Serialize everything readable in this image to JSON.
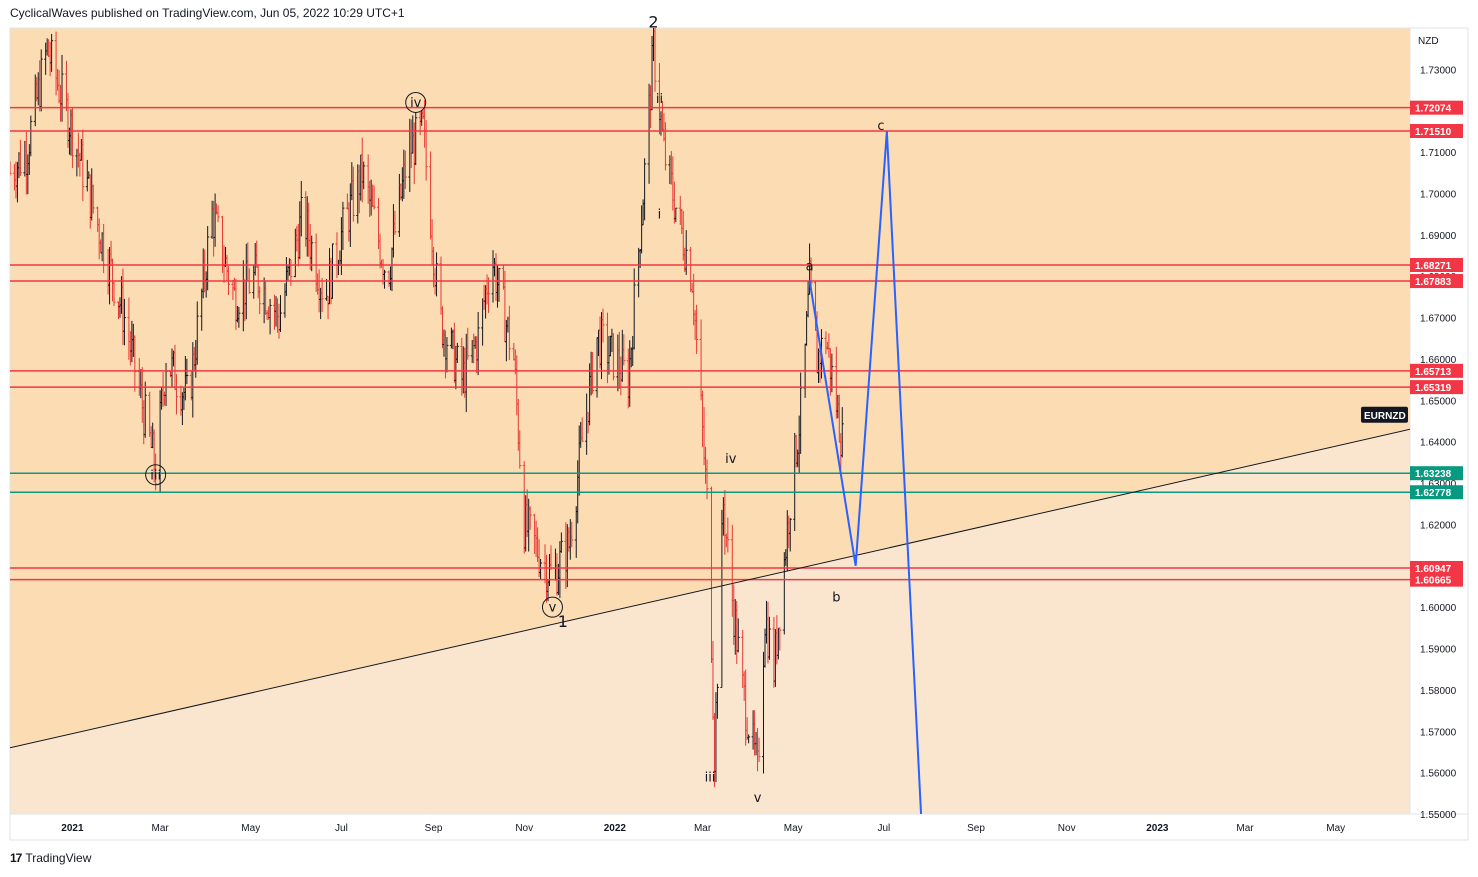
{
  "header": {
    "text": "CyclicalWaves published on TradingView.com, Jun 05, 2022 10:29 UTC+1"
  },
  "footer": {
    "brand": "TradingView",
    "logo": "17"
  },
  "colors": {
    "bg_upper": "#fbdcb3",
    "bg_lower": "#fae6cf",
    "red": "#f23645",
    "green": "#089981",
    "blue": "#2962ff",
    "candle": "#131722",
    "candle_red": "#e53935"
  },
  "chart_data": {
    "type": "candlestick",
    "symbol": "EURNZD",
    "currency": "NZD",
    "ylim": [
      1.55,
      1.74
    ],
    "y_ticks": [
      "1.73000",
      "1.72000",
      "1.71000",
      "1.70000",
      "1.69000",
      "1.68000",
      "1.67000",
      "1.66000",
      "1.65000",
      "1.64000",
      "1.63000",
      "1.62000",
      "1.61000",
      "1.60000",
      "1.59000",
      "1.58000",
      "1.57000",
      "1.56000",
      "1.55000"
    ],
    "x_labels": [
      "2021",
      "Mar",
      "May",
      "Jul",
      "Sep",
      "Nov",
      "2022",
      "Mar",
      "May",
      "Jul",
      "Sep",
      "Nov",
      "2023",
      "Mar",
      "May"
    ],
    "price_path": [
      [
        "2020-11-20",
        1.705
      ],
      [
        "2020-12-01",
        1.71
      ],
      [
        "2020-12-15",
        1.735
      ],
      [
        "2021-01-01",
        1.715
      ],
      [
        "2021-01-20",
        1.69
      ],
      [
        "2021-02-05",
        1.67
      ],
      [
        "2021-02-26",
        1.633
      ],
      [
        "2021-03-05",
        1.66
      ],
      [
        "2021-03-20",
        1.65
      ],
      [
        "2021-04-05",
        1.695
      ],
      [
        "2021-04-20",
        1.675
      ],
      [
        "2021-05-05",
        1.68
      ],
      [
        "2021-05-20",
        1.67
      ],
      [
        "2021-06-05",
        1.695
      ],
      [
        "2021-06-20",
        1.675
      ],
      [
        "2021-07-01",
        1.69
      ],
      [
        "2021-07-15",
        1.705
      ],
      [
        "2021-08-01",
        1.68
      ],
      [
        "2021-08-15",
        1.71
      ],
      [
        "2021-08-25",
        1.715
      ],
      [
        "2021-09-05",
        1.67
      ],
      [
        "2021-09-20",
        1.655
      ],
      [
        "2021-10-01",
        1.665
      ],
      [
        "2021-10-10",
        1.685
      ],
      [
        "2021-10-25",
        1.66
      ],
      [
        "2021-11-01",
        1.62
      ],
      [
        "2021-11-20",
        1.607
      ],
      [
        "2021-12-01",
        1.615
      ],
      [
        "2021-12-10",
        1.64
      ],
      [
        "2021-12-20",
        1.665
      ],
      [
        "2022-01-01",
        1.66
      ],
      [
        "2022-01-10",
        1.655
      ],
      [
        "2022-01-20",
        1.7
      ],
      [
        "2022-01-27",
        1.735
      ],
      [
        "2022-02-03",
        1.71
      ],
      [
        "2022-02-12",
        1.695
      ],
      [
        "2022-02-22",
        1.68
      ],
      [
        "2022-03-05",
        1.62
      ],
      [
        "2022-03-09",
        1.565
      ],
      [
        "2022-03-15",
        1.625
      ],
      [
        "2022-03-20",
        1.605
      ],
      [
        "2022-03-28",
        1.58
      ],
      [
        "2022-04-07",
        1.56
      ],
      [
        "2022-04-12",
        1.598
      ],
      [
        "2022-04-18",
        1.585
      ],
      [
        "2022-04-30",
        1.63
      ],
      [
        "2022-05-07",
        1.65
      ],
      [
        "2022-05-12",
        1.678
      ],
      [
        "2022-05-17",
        1.66
      ],
      [
        "2022-05-23",
        1.665
      ],
      [
        "2022-06-03",
        1.64
      ]
    ],
    "series": [
      {
        "name": "EURNZD",
        "type": "candles"
      }
    ],
    "horizontal_lines": [
      {
        "value": 1.72074,
        "label": "1.72074",
        "color": "red"
      },
      {
        "value": 1.7151,
        "label": "1.71510",
        "color": "red"
      },
      {
        "value": 1.68271,
        "label": "1.68271",
        "color": "red"
      },
      {
        "value": 1.67883,
        "label": "1.67883",
        "color": "red"
      },
      {
        "value": 1.65713,
        "label": "1.65713",
        "color": "red"
      },
      {
        "value": 1.65319,
        "label": "1.65319",
        "color": "red"
      },
      {
        "value": 1.63238,
        "label": "1.63238",
        "color": "green"
      },
      {
        "value": 1.62778,
        "label": "1.62778",
        "color": "green"
      },
      {
        "value": 1.60947,
        "label": "1.60947",
        "color": "red"
      },
      {
        "value": 1.60665,
        "label": "1.60665",
        "color": "red"
      }
    ],
    "trendline": {
      "from": [
        "2020-11-20",
        1.566
      ],
      "to": [
        "2023-06-20",
        1.643
      ]
    },
    "projection": [
      [
        "2022-05-12",
        1.679
      ],
      [
        "2022-06-12",
        1.61
      ],
      [
        "2022-07-03",
        1.715
      ],
      [
        "2022-07-26",
        1.55
      ]
    ],
    "wave_labels": [
      {
        "text": "2",
        "date": "2022-01-27",
        "value": 1.7415,
        "size": "large"
      },
      {
        "text": "1",
        "date": "2021-11-27",
        "value": 1.5965,
        "size": "large"
      },
      {
        "text": "iv",
        "date": "2021-08-20",
        "value": 1.722,
        "circled": true
      },
      {
        "text": "iii",
        "date": "2021-02-26",
        "value": 1.632,
        "circled": true
      },
      {
        "text": "v",
        "date": "2021-11-20",
        "value": 1.6,
        "circled": true
      },
      {
        "text": "ii",
        "date": "2022-01-31",
        "value": 1.723
      },
      {
        "text": "i",
        "date": "2022-01-31",
        "value": 1.695
      },
      {
        "text": "iv",
        "date": "2022-03-20",
        "value": 1.636
      },
      {
        "text": "iii",
        "date": "2022-03-06",
        "value": 1.559
      },
      {
        "text": "v",
        "date": "2022-04-07",
        "value": 1.554
      },
      {
        "text": "a",
        "date": "2022-05-12",
        "value": 1.6825
      },
      {
        "text": "b",
        "date": "2022-05-30",
        "value": 1.6025
      },
      {
        "text": "c",
        "date": "2022-06-29",
        "value": 1.7165
      }
    ]
  }
}
